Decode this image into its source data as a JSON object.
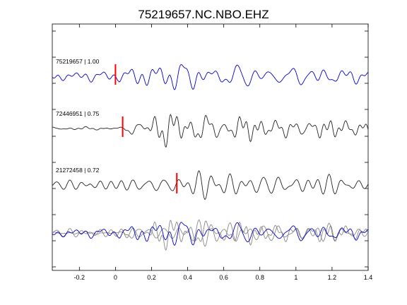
{
  "chart_data": {
    "type": "line",
    "title": "75219657.NC.NBO.EHZ",
    "xlabel": "",
    "ylabel": "",
    "xlim": [
      -0.35,
      1.4
    ],
    "x_ticks": [
      -0.2,
      0,
      0.2,
      0.4,
      0.6,
      0.8,
      1,
      1.2,
      1.4
    ],
    "x_tick_labels": [
      "-0.2",
      "0",
      "0.2",
      "0.4",
      "0.6",
      "0.8",
      "1",
      "1.2",
      "1.4"
    ],
    "grid": false,
    "colors": {
      "primary": "#0000cc",
      "secondary": "#222222",
      "overlay": "#888888",
      "pick": "#ff0000"
    },
    "traces": [
      {
        "label": "75219657 | 1.00",
        "color": "#0000cc",
        "pick_x": 0.0
      },
      {
        "label": "72446951 | 0.75",
        "color": "#222222",
        "pick_x": 0.04
      },
      {
        "label": "21272458 | 0.72",
        "color": "#222222",
        "pick_x": 0.34
      }
    ],
    "overlay_trace": "stacked comparison of all waveforms (primary in blue, others in gray)"
  }
}
